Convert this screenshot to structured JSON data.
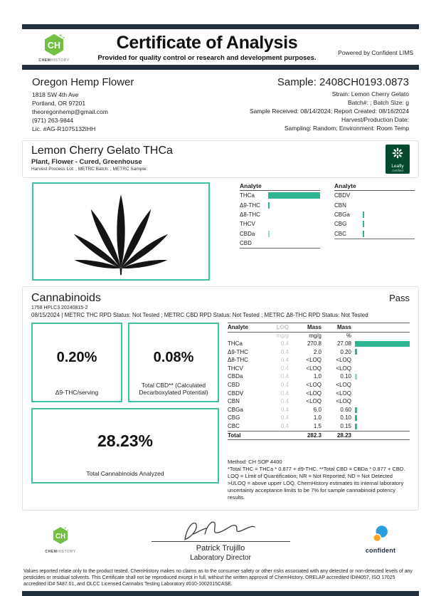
{
  "colors": {
    "navy": "#22303e",
    "accent_teal": "#2cb493",
    "accent_teal_light": "#93dcca",
    "teal_border": "#3fc1a4",
    "logo_green": "#72bf44",
    "leafly_green": "#05492f",
    "confident_blue": "#2d9cdb",
    "confident_orange": "#f5a623"
  },
  "header": {
    "title": "Certificate of Analysis",
    "subtitle": "Provided for quality control or research and development purposes.",
    "powered_by": "Powered by Confident LIMS",
    "logo": {
      "abbr": "CH",
      "word_dark": "CHEM",
      "word_light": "HISTORY"
    }
  },
  "client": {
    "name": "Oregon Hemp Flower",
    "lines": [
      "1818 SW 4th Ave",
      "Portland, OR 97201",
      "theoregonhemp@gmail.com",
      "(971) 263-9844",
      "Lic. #AG-R1075132IHH"
    ]
  },
  "sample": {
    "label": "Sample:",
    "id": "2408CH0193.0873",
    "lines": [
      "Strain: Lemon Cherry Gelato",
      "Batch#: ; Batch Size:  g",
      "Sample Received: 08/14/2024; Report Created: 08/16/2024",
      "Harvest/Production Date:",
      "Sampling: Random; Environment: Room Temp"
    ]
  },
  "product": {
    "name": "Lemon Cherry Gelato THCa",
    "type": "Plant, Flower - Cured, Greenhouse",
    "meta": "Harvest Process Lot: ; METRC Batch: ; METRC Sample:",
    "leafly_name": "Leafly",
    "leafly_sub": "certified"
  },
  "analyte_chart": {
    "header_label": "Analyte",
    "max_pct": 27.08,
    "columns": [
      [
        {
          "label": "THCa",
          "pct": 27.08
        },
        {
          "label": "Δ9-THC",
          "pct": 0.2
        },
        {
          "label": "Δ8-THC",
          "pct": 0
        },
        {
          "label": "THCV",
          "pct": 0
        },
        {
          "label": "CBDa",
          "pct": 0.1,
          "light": true
        },
        {
          "label": "CBD",
          "pct": 0
        }
      ],
      [
        {
          "label": "CBDV",
          "pct": 0
        },
        {
          "label": "CBN",
          "pct": 0
        },
        {
          "label": "CBGa",
          "pct": 0.6
        },
        {
          "label": "CBG",
          "pct": 0.1
        },
        {
          "label": "CBC",
          "pct": 0.15
        }
      ]
    ]
  },
  "cannabinoids": {
    "title": "Cannabinoids",
    "status": "Pass",
    "run_id": "1758 HPLC3 20240815-2",
    "status_line": "08/15/2024 | METRC THC RPD Status: Not Tested ; METRC CBD RPD Status: Not Tested ; METRC Δ8-THC RPD Status: Not Tested",
    "boxes": [
      {
        "value": "0.20%",
        "label": "Δ9-THC/serving"
      },
      {
        "value": "0.08%",
        "label": "Total CBD** (Calculated Decarboxylated Potential)"
      },
      {
        "value": "28.23%",
        "label": "Total Cannabinoids Analyzed"
      }
    ],
    "table": {
      "col_headers": [
        "Analyte",
        "LOQ",
        "Mass",
        "Mass"
      ],
      "unit_row": [
        "",
        "mg/g",
        "mg/g",
        "%"
      ],
      "rows": [
        {
          "analyte": "THCa",
          "loq": "0.4",
          "mass_mgg": "270.8",
          "mass_pct": "27.08",
          "bar_pct": 27.08
        },
        {
          "analyte": "Δ9-THC",
          "loq": "0.4",
          "mass_mgg": "2.0",
          "mass_pct": "0.20",
          "bar_pct": 0.2
        },
        {
          "analyte": "Δ8-THC",
          "loq": "0.4",
          "mass_mgg": "<LOQ",
          "mass_pct": "<LOQ",
          "bar_pct": 0
        },
        {
          "analyte": "THCV",
          "loq": "0.4",
          "mass_mgg": "<LOQ",
          "mass_pct": "<LOQ",
          "bar_pct": 0
        },
        {
          "analyte": "CBDa",
          "loq": "0.4",
          "mass_mgg": "1.0",
          "mass_pct": "0.10",
          "bar_pct": 0.1,
          "light": true
        },
        {
          "analyte": "CBD",
          "loq": "0.4",
          "mass_mgg": "<LOQ",
          "mass_pct": "<LOQ",
          "bar_pct": 0
        },
        {
          "analyte": "CBDV",
          "loq": "0.4",
          "mass_mgg": "<LOQ",
          "mass_pct": "<LOQ",
          "bar_pct": 0
        },
        {
          "analyte": "CBN",
          "loq": "0.4",
          "mass_mgg": "<LOQ",
          "mass_pct": "<LOQ",
          "bar_pct": 0
        },
        {
          "analyte": "CBGa",
          "loq": "0.4",
          "mass_mgg": "6.0",
          "mass_pct": "0.60",
          "bar_pct": 0.6
        },
        {
          "analyte": "CBG",
          "loq": "0.4",
          "mass_mgg": "1.0",
          "mass_pct": "0.10",
          "bar_pct": 0.1
        },
        {
          "analyte": "CBC",
          "loq": "0.4",
          "mass_mgg": "1.5",
          "mass_pct": "0.15",
          "bar_pct": 0.15
        }
      ],
      "total": {
        "label": "Total",
        "mass_mgg": "282.3",
        "mass_pct": "28.23"
      }
    },
    "method_lines": [
      "Method: CH SOP 4400",
      "*Total THC = THCa * 0.877 + d9-THC. **Total CBD = CBDa * 0.877 + CBD. LOQ = Limit of Quantification; NR = Not Reported; ND = Not Detected",
      ">ULOQ = above upper LOQ. ChemHistory estimates its internal laboratory uncertainty acceptance limits to be 7% for sample cannabinoid potency results."
    ]
  },
  "footer": {
    "signer_name": "Patrick Trujillo",
    "signer_title": "Laboratory Director",
    "confident_label": "confident",
    "disclaimer": "Values reported relate only to the product tested. ChemHistory makes no claims as to the consumer safety or other risks associated with any detected or non-detected levels of any pesticides or residual solvents. This Certificate shall not be reproduced except in full, without the written approval of ChemHistory.  ORELAP accredited ID#4057, ISO 17025 accredited ID# 5487.01, and OLCC Licensed Cannabis Testing Laboratory #010-1002015CASE."
  },
  "chart_data": {
    "type": "bar",
    "title": "Cannabinoid concentration (Mass %)",
    "categories": [
      "THCa",
      "Δ9-THC",
      "Δ8-THC",
      "THCV",
      "CBDa",
      "CBD",
      "CBDV",
      "CBN",
      "CBGa",
      "CBG",
      "CBC"
    ],
    "values": [
      27.08,
      0.2,
      null,
      null,
      0.1,
      null,
      null,
      null,
      0.6,
      0.1,
      0.15
    ],
    "units": "%",
    "xlim": [
      0,
      27.08
    ],
    "legend": "off",
    "note": "null values rendered as <LOQ"
  }
}
